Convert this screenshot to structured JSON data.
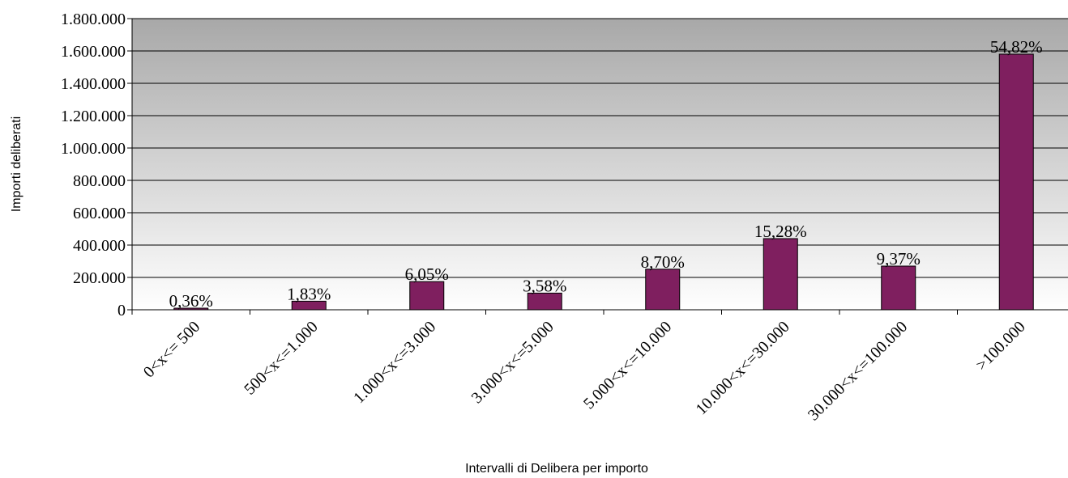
{
  "chart_data": {
    "type": "bar",
    "title": "",
    "xlabel": "Intervalli di Delibera per importo",
    "ylabel": "Importi deliberati",
    "ylim": [
      0,
      1800000
    ],
    "ytick_values": [
      0,
      200000,
      400000,
      600000,
      800000,
      1000000,
      1200000,
      1400000,
      1600000,
      1800000
    ],
    "ytick_labels": [
      "0",
      "200.000",
      "400.000",
      "600.000",
      "800.000",
      "1.000.000",
      "1.200.000",
      "1.400.000",
      "1.600.000",
      "1.800.000"
    ],
    "categories": [
      "0<x<= 500",
      "500<x<=1.000",
      "1.000<x<=3.000",
      "3.000<x<=5.000",
      "5.000<x<=10.000",
      "10.000<x<=30.000",
      "30.000<x<=100.000",
      ">100.000"
    ],
    "values": [
      10000,
      53000,
      174000,
      103000,
      251000,
      440000,
      270000,
      1580000
    ],
    "data_labels": [
      "0,36%",
      "1,83%",
      "6,05%",
      "3,58%",
      "8,70%",
      "15,28%",
      "9,37%",
      "54,82%"
    ],
    "grid": true,
    "legend": "none",
    "colors": {
      "bar_fill": "#7f1f5f",
      "bar_stroke": "#000000",
      "plot_bg_top": "#a8a8a8",
      "plot_bg_bottom": "#ffffff",
      "grid": "#000000"
    }
  }
}
